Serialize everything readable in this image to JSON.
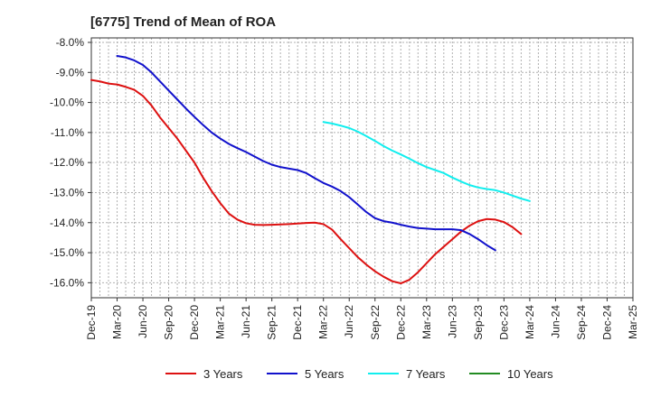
{
  "chart_data": {
    "type": "line",
    "title": "[6775]  Trend of Mean of ROA",
    "xlabel": "",
    "ylabel": "",
    "ylim": [
      -16.5,
      -7.85
    ],
    "grid": true,
    "legend_position": "bottom",
    "x_categories": [
      "Dec-19",
      "Mar-20",
      "Jun-20",
      "Sep-20",
      "Dec-20",
      "Mar-21",
      "Jun-21",
      "Sep-21",
      "Dec-21",
      "Mar-22",
      "Jun-22",
      "Sep-22",
      "Dec-22",
      "Mar-23",
      "Jun-23",
      "Sep-23",
      "Dec-23",
      "Mar-24",
      "Jun-24",
      "Sep-24",
      "Dec-24",
      "Mar-25"
    ],
    "y_ticks": [
      {
        "value": -8,
        "label": "-8.0%"
      },
      {
        "value": -9,
        "label": "-9.0%"
      },
      {
        "value": -10,
        "label": "-10.0%"
      },
      {
        "value": -11,
        "label": "-11.0%"
      },
      {
        "value": -12,
        "label": "-12.0%"
      },
      {
        "value": -13,
        "label": "-13.0%"
      },
      {
        "value": -14,
        "label": "-14.0%"
      },
      {
        "value": -15,
        "label": "-15.0%"
      },
      {
        "value": -16,
        "label": "-16.0%"
      }
    ],
    "series": [
      {
        "name": "3 Years",
        "color": "#dd1111",
        "start_index": 0,
        "values": [
          -9.25,
          -9.3,
          -9.37,
          -9.4,
          -9.48,
          -9.58,
          -9.78,
          -10.1,
          -10.5,
          -10.85,
          -11.2,
          -11.6,
          -12.0,
          -12.5,
          -12.95,
          -13.35,
          -13.7,
          -13.9,
          -14.02,
          -14.07,
          -14.08,
          -14.07,
          -14.06,
          -14.05,
          -14.03,
          -14.01,
          -14.0,
          -14.05,
          -14.23,
          -14.55,
          -14.85,
          -15.15,
          -15.4,
          -15.62,
          -15.8,
          -15.95,
          -16.02,
          -15.9,
          -15.65,
          -15.35,
          -15.05,
          -14.8,
          -14.55,
          -14.3,
          -14.1,
          -13.95,
          -13.88,
          -13.9,
          -13.98,
          -14.15,
          -14.38
        ]
      },
      {
        "name": "5 Years",
        "color": "#1111cc",
        "start_index": 3,
        "values": [
          -8.45,
          -8.5,
          -8.6,
          -8.75,
          -9.0,
          -9.3,
          -9.6,
          -9.9,
          -10.2,
          -10.48,
          -10.75,
          -11.0,
          -11.2,
          -11.38,
          -11.52,
          -11.65,
          -11.8,
          -11.95,
          -12.07,
          -12.15,
          -12.2,
          -12.25,
          -12.35,
          -12.52,
          -12.68,
          -12.8,
          -12.95,
          -13.15,
          -13.4,
          -13.65,
          -13.85,
          -13.95,
          -14.0,
          -14.07,
          -14.13,
          -14.18,
          -14.2,
          -14.22,
          -14.22,
          -14.22,
          -14.25,
          -14.38,
          -14.55,
          -14.75,
          -14.92
        ]
      },
      {
        "name": "7 Years",
        "color": "#11eeee",
        "start_index": 27,
        "values": [
          -10.65,
          -10.7,
          -10.77,
          -10.85,
          -10.97,
          -11.12,
          -11.28,
          -11.45,
          -11.6,
          -11.73,
          -11.87,
          -12.02,
          -12.15,
          -12.25,
          -12.35,
          -12.5,
          -12.63,
          -12.75,
          -12.83,
          -12.88,
          -12.92,
          -13.0,
          -13.1,
          -13.2,
          -13.28
        ]
      },
      {
        "name": "10 Years",
        "color": "#228B22",
        "start_index": 0,
        "values": []
      }
    ]
  }
}
